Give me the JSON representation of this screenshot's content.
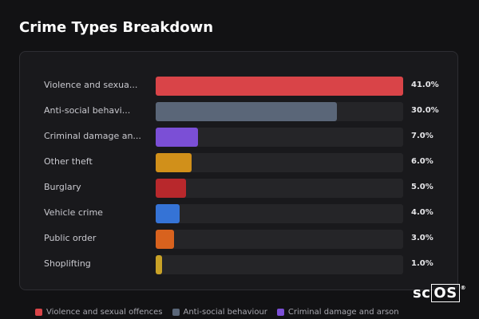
{
  "title": "Crime Types Breakdown",
  "watermark": {
    "prefix": "sc",
    "boxed": "OS"
  },
  "chart_data": {
    "type": "bar",
    "orientation": "horizontal",
    "title": "Crime Types Breakdown",
    "categories": [
      "Violence and sexual offences",
      "Anti-social behaviour",
      "Criminal damage and arson",
      "Other theft",
      "Burglary",
      "Vehicle crime",
      "Public order",
      "Shoplifting"
    ],
    "display_labels": [
      "Violence and sexua...",
      "Anti-social behavi...",
      "Criminal damage an...",
      "Other theft",
      "Burglary",
      "Vehicle crime",
      "Public order",
      "Shoplifting"
    ],
    "values": [
      41.0,
      30.0,
      7.0,
      6.0,
      5.0,
      4.0,
      3.0,
      1.0
    ],
    "value_labels": [
      "41.0%",
      "30.0%",
      "7.0%",
      "6.0%",
      "5.0%",
      "4.0%",
      "3.0%",
      "1.0%"
    ],
    "colors": [
      "#d94448",
      "#5a6678",
      "#7b4fd6",
      "#d1901a",
      "#b8282c",
      "#3573d6",
      "#d8621e",
      "#c9a227"
    ],
    "xlim": [
      0,
      41.0
    ],
    "grid": false,
    "legend_position": "bottom",
    "legend": [
      {
        "label": "Violence and sexual offences",
        "color": "#d94448"
      },
      {
        "label": "Anti-social behaviour",
        "color": "#5a6678"
      },
      {
        "label": "Criminal damage and arson",
        "color": "#7b4fd6"
      }
    ]
  }
}
